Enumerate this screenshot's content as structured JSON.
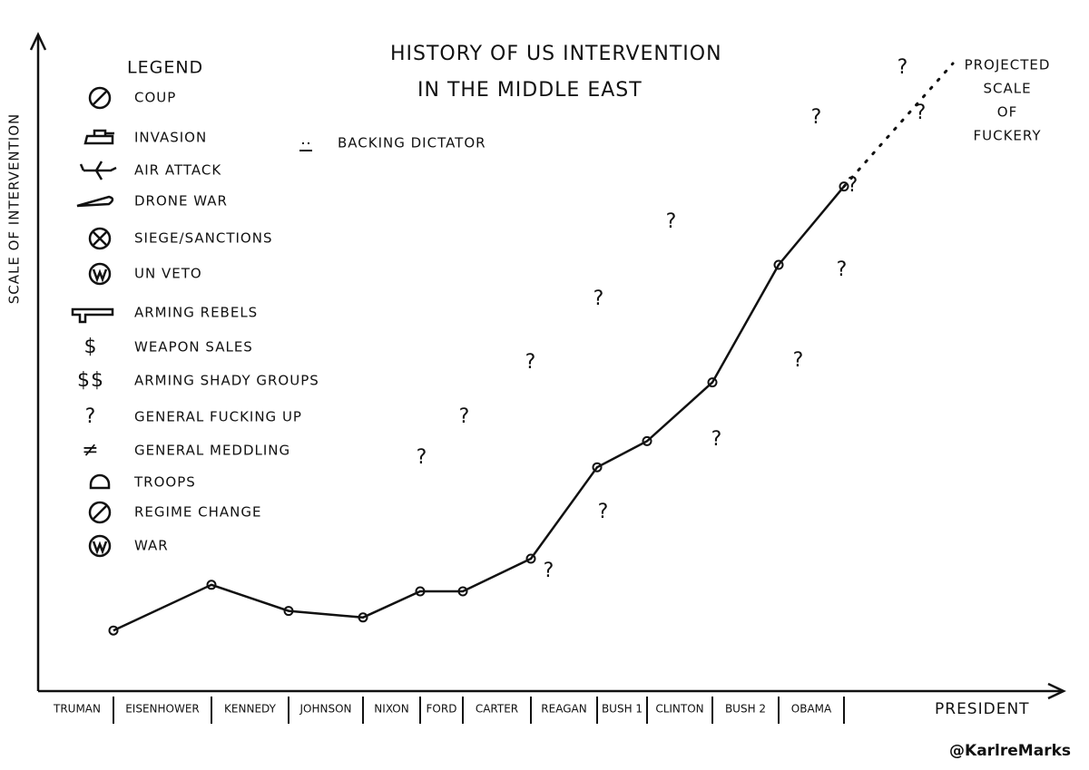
{
  "chart_data": {
    "type": "line",
    "title": "HISTORY OF US INTERVENTION",
    "subtitle": "IN THE MIDDLE EAST",
    "y_label": "SCALE OF INTERVENTION",
    "x_label": "PRESIDENT",
    "categories": [
      "TRUMAN",
      "EISENHOWER",
      "KENNEDY",
      "JOHNSON",
      "NIXON",
      "FORD",
      "CARTER",
      "REAGAN",
      "BUSH 1",
      "CLINTON",
      "BUSH 2",
      "OBAMA"
    ],
    "series": [
      {
        "color": "#111111",
        "values": [
          9,
          16,
          12,
          11,
          15,
          15,
          20,
          34,
          38,
          47,
          65,
          77
        ]
      }
    ],
    "ylim": [
      0,
      100
    ],
    "projection_label": [
      "PROJECTED",
      "SCALE",
      "OF",
      "FUCKERY"
    ],
    "legend_title": "LEGEND",
    "legend": [
      {
        "label": "COUP"
      },
      {
        "label": "INVASION"
      },
      {
        "label": "AIR ATTACK"
      },
      {
        "label": "DRONE WAR"
      },
      {
        "label": "SIEGE/SANCTIONS"
      },
      {
        "label": "UN VETO"
      },
      {
        "label": "ARMING REBELS"
      },
      {
        "symbol": "$",
        "label": "WEAPON SALES"
      },
      {
        "symbol": "$$",
        "label": "ARMING SHADY GROUPS"
      },
      {
        "symbol": "?",
        "label": "GENERAL FUCKING UP"
      },
      {
        "symbol": "≠",
        "label": "GENERAL MEDDLING"
      },
      {
        "label": "TROOPS"
      },
      {
        "label": "REGIME CHANGE"
      },
      {
        "label": "WAR"
      },
      {
        "label": "BACKING DICTATOR"
      }
    ],
    "question_marks": [
      "?",
      "?",
      "?",
      "?",
      "?",
      "?",
      "?",
      "?",
      "?",
      "?",
      "?",
      "?",
      "?",
      "?"
    ],
    "credit": "@KarlreMarks"
  }
}
